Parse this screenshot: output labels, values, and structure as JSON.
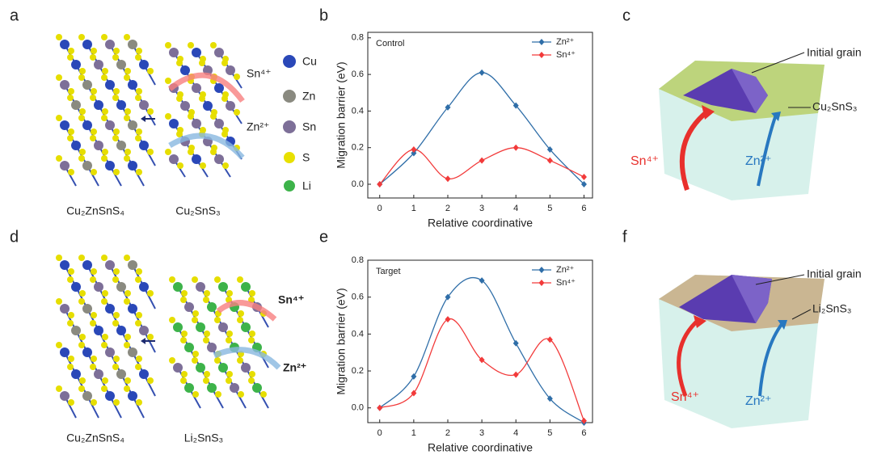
{
  "panel_labels": [
    "a",
    "b",
    "c",
    "d",
    "e",
    "f"
  ],
  "panel_a": {
    "left_label": "Cu₂ZnSnS₄",
    "right_label": "Cu₂SnS₃",
    "ion_top": "Sn⁴⁺",
    "ion_bottom": "Zn²⁺"
  },
  "atom_legend": [
    "Cu",
    "Zn",
    "Sn",
    "S",
    "Li"
  ],
  "panel_c": {
    "initial": "Initial grain",
    "phase": "Cu₂SnS₃",
    "ion_left": "Sn⁴⁺",
    "ion_right": "Zn²⁺"
  },
  "panel_d": {
    "left_label": "Cu₂ZnSnS₄",
    "right_label": "Li₂SnS₃",
    "ion_top": "Sn⁴⁺",
    "ion_bottom": "Zn²⁺"
  },
  "panel_f": {
    "initial": "Initial grain",
    "phase": "Li₂SnS₃",
    "ion_left": "Sn⁴⁺",
    "ion_right": "Zn²⁺"
  },
  "chart_data": [
    {
      "type": "line",
      "annotation": "Control",
      "x_label": "Relative coordinative",
      "y_label": "Migration barrier (eV)",
      "x": [
        0,
        1,
        2,
        3,
        4,
        5,
        6
      ],
      "series": [
        {
          "name": "Zn²⁺",
          "color": "#2f6ea8",
          "values": [
            0.0,
            0.17,
            0.42,
            0.61,
            0.43,
            0.19,
            0.0
          ]
        },
        {
          "name": "Sn⁴⁺",
          "color": "#f23a3a",
          "values": [
            0.0,
            0.19,
            0.03,
            0.13,
            0.2,
            0.13,
            0.04
          ]
        }
      ],
      "xlim": [
        -0.35,
        6.25
      ],
      "ylim": [
        -0.075,
        0.83
      ],
      "xticks": [
        0,
        1,
        2,
        3,
        4,
        5,
        6
      ],
      "yticks": [
        {
          "value": 0,
          "label": "0.0"
        },
        0.2,
        0.4,
        0.6,
        0.8
      ],
      "legend": "upper right"
    },
    {
      "type": "line",
      "annotation": "Target",
      "x_label": "Relative coordinative",
      "y_label": "Migration barrier (eV)",
      "x": [
        0,
        1,
        2,
        3,
        4,
        5,
        6
      ],
      "series": [
        {
          "name": "Zn²⁺",
          "color": "#2f6ea8",
          "values": [
            0.0,
            0.17,
            0.6,
            0.69,
            0.35,
            0.05,
            -0.08
          ]
        },
        {
          "name": "Sn⁴⁺",
          "color": "#f23a3a",
          "values": [
            0.0,
            0.08,
            0.48,
            0.26,
            0.18,
            0.37,
            -0.07
          ]
        }
      ],
      "xlim": [
        -0.35,
        6.25
      ],
      "ylim": [
        -0.08,
        0.8
      ],
      "xticks": [
        0,
        1,
        2,
        3,
        4,
        5,
        6
      ],
      "yticks": [
        {
          "value": 0,
          "label": "0.0"
        },
        0.2,
        0.4,
        0.6,
        0.8
      ],
      "legend": "upper right"
    }
  ]
}
